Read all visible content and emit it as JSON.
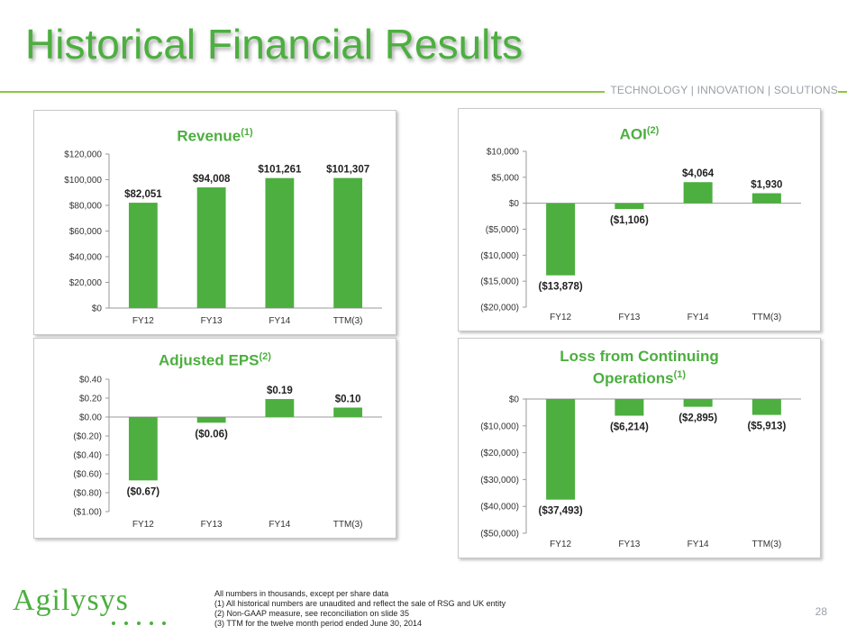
{
  "header": {
    "title": "Historical Financial Results",
    "tagline": "TECHNOLOGY | INNOVATION | SOLUTIONS"
  },
  "colors": {
    "accent": "#4caf3f",
    "bar": "#4caf3f",
    "rule": "#8cc63f",
    "muted": "#9aa0a6"
  },
  "chart_data": [
    {
      "id": "revenue",
      "type": "bar",
      "title": "Revenue",
      "title_sup": "(1)",
      "categories": [
        "FY12",
        "FY13",
        "FY14",
        "TTM(3)"
      ],
      "values": [
        82051,
        94008,
        101261,
        101307
      ],
      "data_labels": [
        "$82,051",
        "$94,008",
        "$101,261",
        "$101,307"
      ],
      "yticks": [
        0,
        20000,
        40000,
        60000,
        80000,
        100000,
        120000
      ],
      "ytick_labels": [
        "$0",
        "$20,000",
        "$40,000",
        "$60,000",
        "$80,000",
        "$100,000",
        "$120,000"
      ],
      "ylim": [
        0,
        120000
      ],
      "grid": false
    },
    {
      "id": "aoi",
      "type": "bar",
      "title": "AOI",
      "title_sup": "(2)",
      "categories": [
        "FY12",
        "FY13",
        "FY14",
        "TTM(3)"
      ],
      "values": [
        -13878,
        -1106,
        4064,
        1930
      ],
      "data_labels": [
        "($13,878)",
        "($1,106)",
        "$4,064",
        "$1,930"
      ],
      "yticks": [
        -20000,
        -15000,
        -10000,
        -5000,
        0,
        5000,
        10000
      ],
      "ytick_labels": [
        "($20,000)",
        "($15,000)",
        "($10,000)",
        "($5,000)",
        "$0",
        "$5,000",
        "$10,000"
      ],
      "ylim": [
        -20000,
        10000
      ],
      "grid": false
    },
    {
      "id": "eps",
      "type": "bar",
      "title": "Adjusted EPS",
      "title_sup": "(2)",
      "categories": [
        "FY12",
        "FY13",
        "FY14",
        "TTM(3)"
      ],
      "values": [
        -0.67,
        -0.06,
        0.19,
        0.1
      ],
      "data_labels": [
        "($0.67)",
        "($0.06)",
        "$0.19",
        "$0.10"
      ],
      "yticks": [
        -1.0,
        -0.8,
        -0.6,
        -0.4,
        -0.2,
        0.0,
        0.2,
        0.4
      ],
      "ytick_labels": [
        "($1.00)",
        "($0.80)",
        "($0.60)",
        "($0.40)",
        "($0.20)",
        "$0.00",
        "$0.20",
        "$0.40"
      ],
      "ylim": [
        -1.0,
        0.4
      ],
      "grid": false
    },
    {
      "id": "loss",
      "type": "bar",
      "title": "Loss from Continuing",
      "title_line2": "Operations",
      "title_sup": "(1)",
      "categories": [
        "FY12",
        "FY13",
        "FY14",
        "TTM(3)"
      ],
      "values": [
        -37493,
        -6214,
        -2895,
        -5913
      ],
      "data_labels": [
        "($37,493)",
        "($6,214)",
        "($2,895)",
        "($5,913)"
      ],
      "yticks": [
        -50000,
        -40000,
        -30000,
        -20000,
        -10000,
        0
      ],
      "ytick_labels": [
        "($50,000)",
        "($40,000)",
        "($30,000)",
        "($20,000)",
        "($10,000)",
        "$0"
      ],
      "ylim": [
        -50000,
        0
      ],
      "grid": false
    }
  ],
  "footnotes": [
    "All numbers in thousands, except per share data",
    "(1) All historical numbers are unaudited and reflect the sale of RSG and UK entity",
    "(2) Non-GAAP measure, see reconciliation on slide 35",
    "(3) TTM for the twelve month period ended June 30, 2014"
  ],
  "logo": {
    "text": "Agilysys"
  },
  "page_number": "28"
}
